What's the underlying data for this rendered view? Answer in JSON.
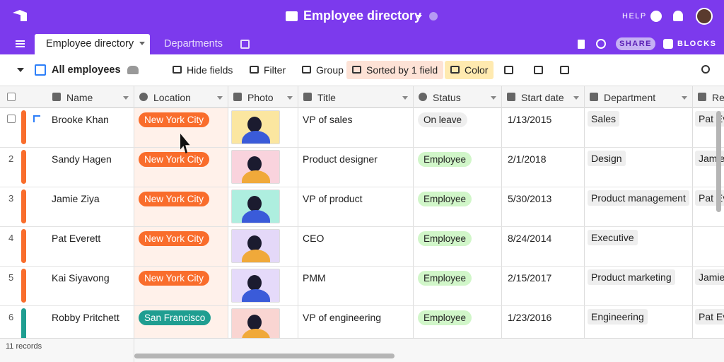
{
  "header": {
    "title": "Employee directory",
    "help": "HELP"
  },
  "tabs": {
    "items": [
      "Employee directory",
      "Departments"
    ],
    "share": "SHARE",
    "blocks": "BLOCKS"
  },
  "toolbar": {
    "view": "All employees",
    "hide_fields": "Hide fields",
    "filter": "Filter",
    "group": "Group",
    "sort": "Sorted by 1 field",
    "color": "Color"
  },
  "table": {
    "columns": [
      "Name",
      "Location",
      "Photo",
      "Title",
      "Status",
      "Start date",
      "Department",
      "Rep"
    ],
    "rows": [
      [
        null,
        "Brooke Khan",
        "New York City",
        "VP of sales",
        "On leave",
        "1/13/2015",
        "Sales",
        "Pat Ev"
      ],
      [
        "2",
        "Sandy Hagen",
        "New York City",
        "Product designer",
        "Employee",
        "2/1/2018",
        "Design",
        "Jamie"
      ],
      [
        "3",
        "Jamie Ziya",
        "New York City",
        "VP of product",
        "Employee",
        "5/30/2013",
        "Product management",
        "Pat Ev"
      ],
      [
        "4",
        "Pat Everett",
        "New York City",
        "CEO",
        "Employee",
        "8/24/2014",
        "Executive",
        null
      ],
      [
        "5",
        "Kai Siyavong",
        "New York City",
        "PMM",
        "Employee",
        "2/15/2017",
        "Product marketing",
        "Jamie"
      ],
      [
        "6",
        "Robby Pritchett",
        "San Francisco",
        "VP of engineering",
        "Employee",
        "1/23/2016",
        "Engineering",
        "Pat Ev"
      ]
    ]
  },
  "footer": {
    "records": "11 records"
  }
}
